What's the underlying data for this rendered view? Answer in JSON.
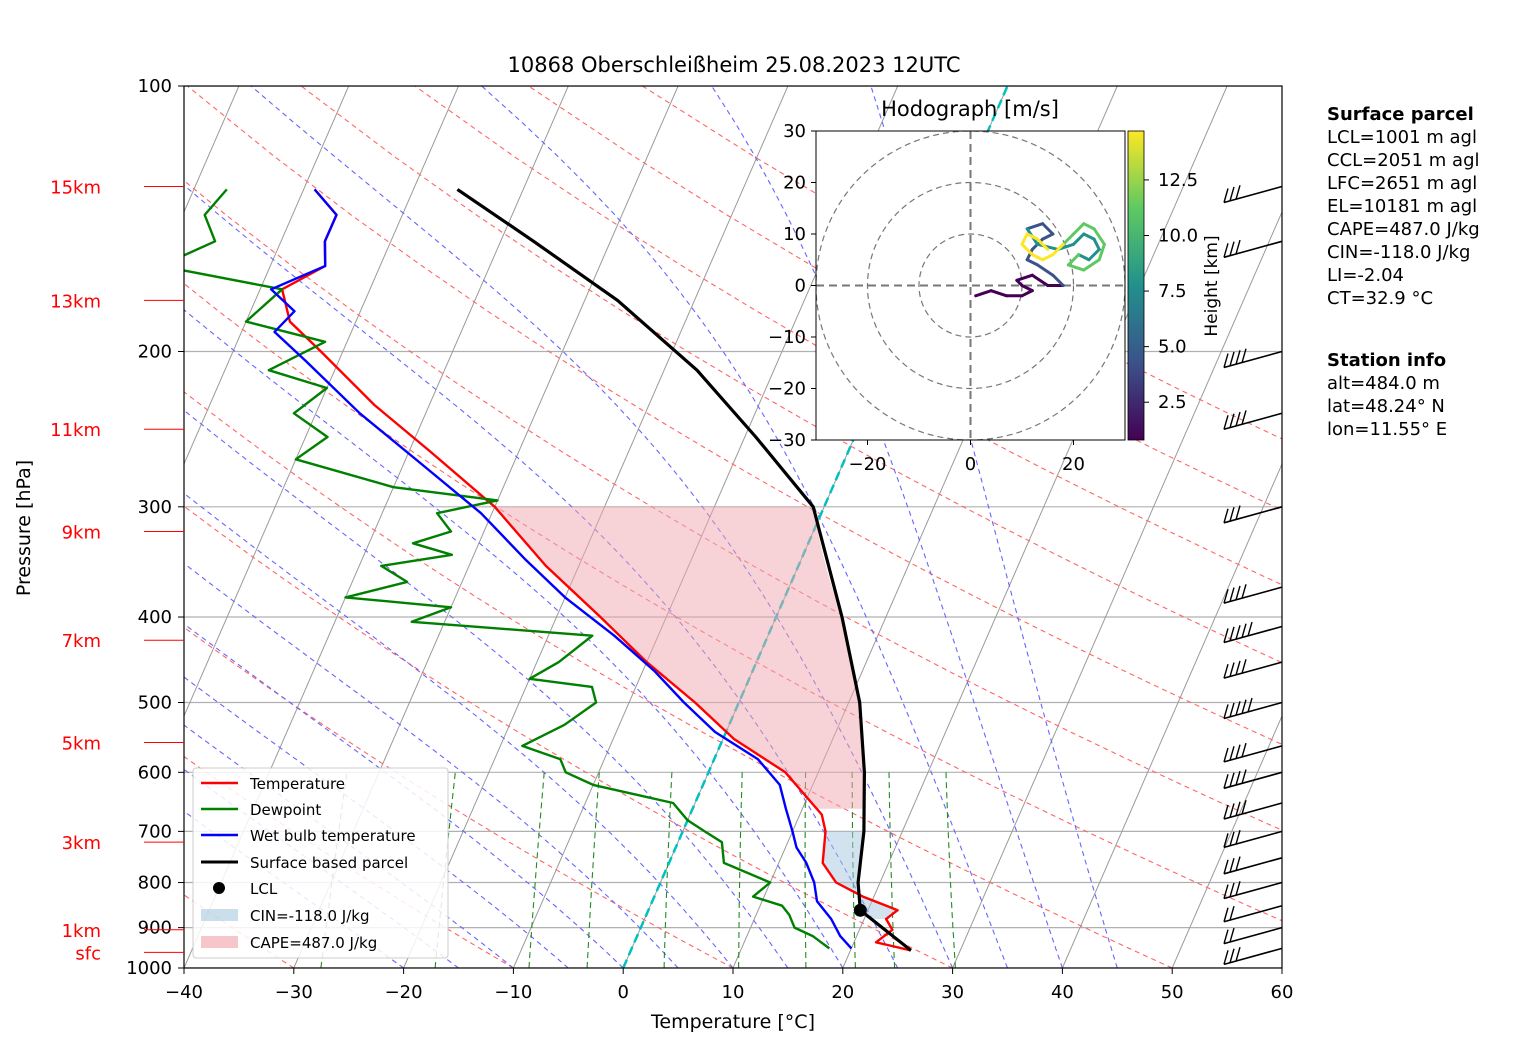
{
  "chart_data": {
    "type": "skew-t",
    "title": "10868 Oberschleißheim 25.08.2023 12UTC",
    "xlabel": "Temperature [°C]",
    "ylabel": "Pressure [hPa]",
    "xlim": [
      -40,
      60
    ],
    "ylim": [
      1000,
      100
    ],
    "x_ticks": [
      "−40",
      "−30",
      "−20",
      "−10",
      "0",
      "10",
      "20",
      "30",
      "40",
      "50",
      "60"
    ],
    "y_ticks": [
      "100",
      "200",
      "300",
      "400",
      "500",
      "600",
      "700",
      "800",
      "900",
      "1000"
    ],
    "height_labels": [
      {
        "label": "sfc",
        "p": 960
      },
      {
        "label": "1km",
        "p": 905
      },
      {
        "label": "3km",
        "p": 720
      },
      {
        "label": "5km",
        "p": 555
      },
      {
        "label": "7km",
        "p": 425
      },
      {
        "label": "9km",
        "p": 320
      },
      {
        "label": "11km",
        "p": 245
      },
      {
        "label": "13km",
        "p": 175
      },
      {
        "label": "15km",
        "p": 130
      }
    ],
    "series": [
      {
        "name": "Temperature",
        "color": "#ff0000",
        "points": [
          [
            25.5,
            955
          ],
          [
            22,
            935
          ],
          [
            23,
            905
          ],
          [
            22,
            880
          ],
          [
            22.7,
            860
          ],
          [
            19,
            830
          ],
          [
            16,
            800
          ],
          [
            14,
            760
          ],
          [
            13,
            700
          ],
          [
            12,
            670
          ],
          [
            7,
            600
          ],
          [
            1,
            550
          ],
          [
            -4,
            500
          ],
          [
            -10,
            450
          ],
          [
            -16,
            400
          ],
          [
            -23,
            350
          ],
          [
            -30,
            300
          ],
          [
            -38,
            260
          ],
          [
            -45,
            230
          ],
          [
            -52,
            200
          ],
          [
            -56,
            185
          ],
          [
            -58,
            170
          ],
          [
            -55,
            160
          ],
          [
            -56,
            150
          ],
          [
            -56,
            140
          ],
          [
            -59,
            131
          ]
        ]
      },
      {
        "name": "Dewpoint",
        "color": "#008000",
        "points": [
          [
            18,
            950
          ],
          [
            17,
            935
          ],
          [
            16,
            920
          ],
          [
            14,
            900
          ],
          [
            13,
            870
          ],
          [
            12,
            850
          ],
          [
            9,
            830
          ],
          [
            10,
            800
          ],
          [
            5,
            760
          ],
          [
            4,
            720
          ],
          [
            2,
            700
          ],
          [
            0,
            680
          ],
          [
            -2,
            650
          ],
          [
            -10,
            620
          ],
          [
            -13,
            600
          ],
          [
            -14,
            580
          ],
          [
            -18,
            560
          ],
          [
            -15,
            530
          ],
          [
            -13,
            500
          ],
          [
            -14,
            480
          ],
          [
            -20,
            470
          ],
          [
            -18,
            450
          ],
          [
            -16,
            420
          ],
          [
            -33,
            405
          ],
          [
            -30,
            390
          ],
          [
            -40,
            380
          ],
          [
            -35,
            365
          ],
          [
            -38,
            350
          ],
          [
            -32,
            340
          ],
          [
            -36,
            330
          ],
          [
            -33,
            320
          ],
          [
            -35,
            305
          ],
          [
            -30,
            295
          ],
          [
            -40,
            285
          ],
          [
            -50,
            265
          ],
          [
            -48,
            250
          ],
          [
            -52,
            235
          ],
          [
            -50,
            220
          ],
          [
            -56,
            210
          ],
          [
            -52,
            195
          ],
          [
            -60,
            185
          ],
          [
            -58,
            170
          ],
          [
            -70,
            160
          ],
          [
            -66,
            150
          ],
          [
            -68,
            140
          ],
          [
            -67,
            131
          ]
        ]
      },
      {
        "name": "Wet bulb temperature",
        "color": "#0000ff",
        "points": [
          [
            20,
            950
          ],
          [
            18.5,
            920
          ],
          [
            17,
            880
          ],
          [
            15,
            840
          ],
          [
            14,
            800
          ],
          [
            12.5,
            760
          ],
          [
            11,
            730
          ],
          [
            10,
            700
          ],
          [
            8.5,
            660
          ],
          [
            7,
            620
          ],
          [
            4,
            580
          ],
          [
            -1,
            540
          ],
          [
            -5,
            500
          ],
          [
            -9,
            460
          ],
          [
            -14,
            420
          ],
          [
            -20,
            380
          ],
          [
            -25,
            345
          ],
          [
            -31,
            305
          ],
          [
            -38,
            270
          ],
          [
            -46,
            235
          ],
          [
            -53,
            205
          ],
          [
            -57,
            190
          ],
          [
            -56,
            180
          ],
          [
            -59,
            170
          ],
          [
            -55,
            160
          ],
          [
            -56,
            150
          ],
          [
            -56,
            140
          ],
          [
            -59,
            131
          ]
        ]
      },
      {
        "name": "Surface based parcel",
        "color": "#000000",
        "points": [
          [
            25.5,
            955
          ],
          [
            19.3,
            860
          ],
          [
            18,
            800
          ],
          [
            16.5,
            700
          ],
          [
            14.2,
            600
          ],
          [
            11,
            500
          ],
          [
            6,
            400
          ],
          [
            -1,
            300
          ],
          [
            -9,
            250
          ],
          [
            -17,
            210
          ],
          [
            -27,
            175
          ],
          [
            -37,
            150
          ],
          [
            -46,
            131
          ]
        ]
      }
    ],
    "lcl": {
      "T": 19.3,
      "p": 860
    },
    "cin": {
      "label": "CIN=-118.0 J/kg",
      "value": -118.0
    },
    "cape": {
      "label": "CAPE=487.0 J/kg",
      "value": 487.0
    },
    "legend": {
      "position": "lower-left",
      "entries": [
        "Temperature",
        "Dewpoint",
        "Wet bulb temperature",
        "Surface based parcel",
        "LCL",
        "CIN=-118.0 J/kg",
        "CAPE=487.0 J/kg"
      ]
    },
    "grid": true,
    "hodograph": {
      "title": "Hodograph [m/s]",
      "xlim": [
        -30,
        30
      ],
      "ylim": [
        -30,
        30
      ],
      "x_ticks": [
        "−20",
        "0",
        "20"
      ],
      "y_ticks": [
        "30",
        "20",
        "10",
        "0",
        "−10",
        "−20",
        "−30"
      ],
      "rings": [
        10,
        20,
        30
      ],
      "colorbar": {
        "label": "Height [km]",
        "ticks": [
          "2.5",
          "5.0",
          "7.5",
          "10.0",
          "12.5"
        ],
        "colormap": "viridis"
      },
      "points": [
        [
          1,
          -2
        ],
        [
          4,
          -1
        ],
        [
          7,
          -2
        ],
        [
          10,
          -2
        ],
        [
          12,
          -1
        ],
        [
          10,
          0
        ],
        [
          9,
          1
        ],
        [
          12,
          2
        ],
        [
          15,
          0
        ],
        [
          18,
          0
        ],
        [
          16,
          2
        ],
        [
          13,
          4
        ],
        [
          11,
          5
        ],
        [
          12,
          7
        ],
        [
          14,
          9
        ],
        [
          16,
          10
        ],
        [
          14,
          12
        ],
        [
          11,
          11
        ],
        [
          13,
          8
        ],
        [
          17,
          7
        ],
        [
          20,
          8
        ],
        [
          22,
          10
        ],
        [
          24,
          9
        ],
        [
          25,
          7
        ],
        [
          23,
          5
        ],
        [
          21,
          6
        ],
        [
          19,
          4
        ],
        [
          22,
          3
        ],
        [
          25,
          5
        ],
        [
          26,
          8
        ],
        [
          24,
          11
        ],
        [
          22,
          12
        ],
        [
          20,
          10
        ],
        [
          18,
          8
        ],
        [
          16,
          6
        ],
        [
          14,
          5
        ],
        [
          12,
          6
        ],
        [
          10,
          8
        ],
        [
          11,
          10
        ],
        [
          13,
          9
        ],
        [
          15,
          7
        ]
      ]
    }
  },
  "surface_parcel": {
    "heading": "Surface parcel",
    "lines": [
      "LCL=1001 m agl",
      "CCL=2051 m agl",
      "LFC=2651 m agl",
      "EL=10181 m agl",
      "CAPE=487.0 J/kg",
      "CIN=-118.0 J/kg",
      "LI=-2.04",
      "CT=32.9 °C"
    ]
  },
  "station_info": {
    "heading": "Station info",
    "lines": [
      "alt=484.0 m",
      "lat=48.24° N",
      "lon=11.55° E"
    ]
  }
}
